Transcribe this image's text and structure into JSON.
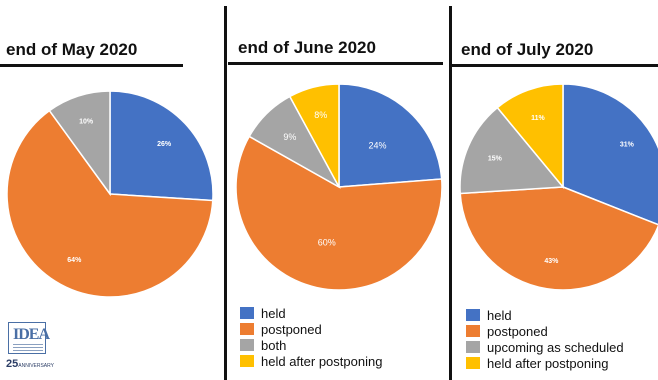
{
  "chart_data": [
    {
      "type": "pie",
      "title": "end of May 2020",
      "labels": [
        "held",
        "postponed",
        "both"
      ],
      "values": [
        26,
        64,
        10
      ],
      "value_labels": [
        "26%",
        "64%",
        "10%"
      ],
      "colors": [
        "#4472c4",
        "#ed7d31",
        "#a5a5a5"
      ],
      "start_angle_deg": 0,
      "direction": "clockwise"
    },
    {
      "type": "pie",
      "title": "end of June 2020",
      "labels": [
        "held",
        "postponed",
        "both",
        "held after postponing"
      ],
      "values": [
        24,
        60,
        9,
        8
      ],
      "value_labels": [
        "24%",
        "60%",
        "9%",
        "8%"
      ],
      "colors": [
        "#4472c4",
        "#ed7d31",
        "#a5a5a5",
        "#ffc000"
      ],
      "start_angle_deg": 0,
      "direction": "clockwise"
    },
    {
      "type": "pie",
      "title": "end of July 2020",
      "labels": [
        "held",
        "postponed",
        "upcoming as scheduled",
        "held after postponing"
      ],
      "values": [
        31,
        43,
        15,
        11
      ],
      "value_labels": [
        "31%",
        "43%",
        "15%",
        "11%"
      ],
      "colors": [
        "#4472c4",
        "#ed7d31",
        "#a5a5a5",
        "#ffc000"
      ],
      "start_angle_deg": 0,
      "direction": "clockwise"
    }
  ],
  "legend_left": [
    {
      "label": "held",
      "color": "#4472c4"
    },
    {
      "label": "postponed",
      "color": "#ed7d31"
    },
    {
      "label": "both",
      "color": "#a5a5a5"
    },
    {
      "label": "held after postponing",
      "color": "#ffc000"
    }
  ],
  "legend_right": [
    {
      "label": "held",
      "color": "#4472c4"
    },
    {
      "label": "postponed",
      "color": "#ed7d31"
    },
    {
      "label": "upcoming as scheduled",
      "color": "#a5a5a5"
    },
    {
      "label": "held after postponing",
      "color": "#ffc000"
    }
  ],
  "logo": {
    "letters": "IDEA",
    "anniversary_number": "25",
    "anniversary_word": "ANNIVERSARY"
  }
}
